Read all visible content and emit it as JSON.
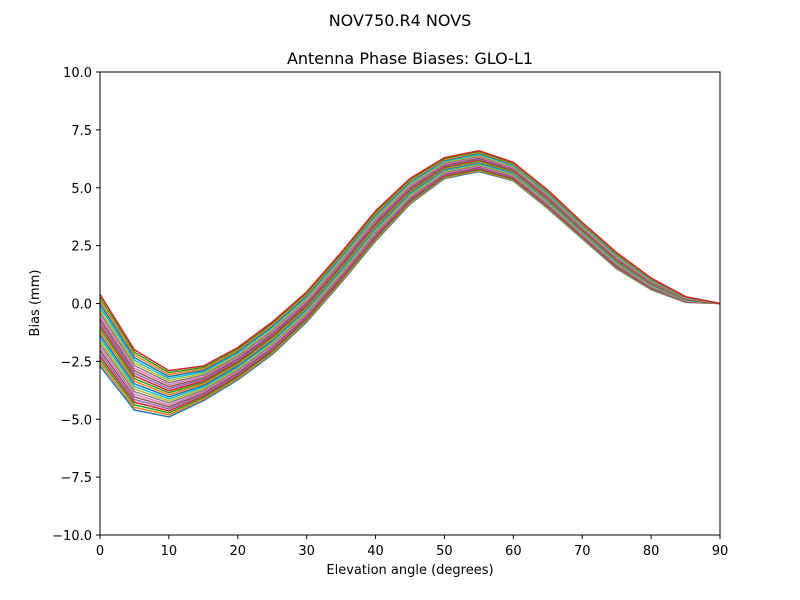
{
  "chart_data": {
    "type": "line",
    "suptitle": "NOV750.R4        NOVS",
    "title": "Antenna Phase Biases: GLO-L1",
    "xlabel": "Elevation angle (degrees)",
    "ylabel": "Bias (mm)",
    "xlim": [
      0,
      90
    ],
    "ylim": [
      -10,
      10
    ],
    "xticks": [
      0,
      10,
      20,
      30,
      40,
      50,
      60,
      70,
      80,
      90
    ],
    "yticks": [
      -10.0,
      -7.5,
      -5.0,
      -2.5,
      0.0,
      2.5,
      5.0,
      7.5,
      10.0
    ],
    "x": [
      0,
      5,
      10,
      15,
      20,
      25,
      30,
      35,
      40,
      45,
      50,
      55,
      60,
      65,
      70,
      75,
      80,
      85,
      90
    ],
    "envelope": {
      "upper": [
        0.4,
        -2.0,
        -2.9,
        -2.7,
        -1.9,
        -0.8,
        0.5,
        2.2,
        4.0,
        5.4,
        6.3,
        6.6,
        6.1,
        4.9,
        3.5,
        2.2,
        1.1,
        0.3,
        0.0
      ],
      "lower": [
        -2.7,
        -4.6,
        -4.9,
        -4.2,
        -3.3,
        -2.2,
        -0.8,
        0.9,
        2.7,
        4.3,
        5.4,
        5.7,
        5.3,
        4.1,
        2.8,
        1.5,
        0.6,
        0.05,
        0.0
      ]
    },
    "series_count": 24,
    "palette": [
      "#1f77b4",
      "#ff7f0e",
      "#2ca02c",
      "#d62728",
      "#9467bd",
      "#8c564b",
      "#e377c2",
      "#7f7f7f",
      "#bcbd22",
      "#17becf"
    ]
  }
}
